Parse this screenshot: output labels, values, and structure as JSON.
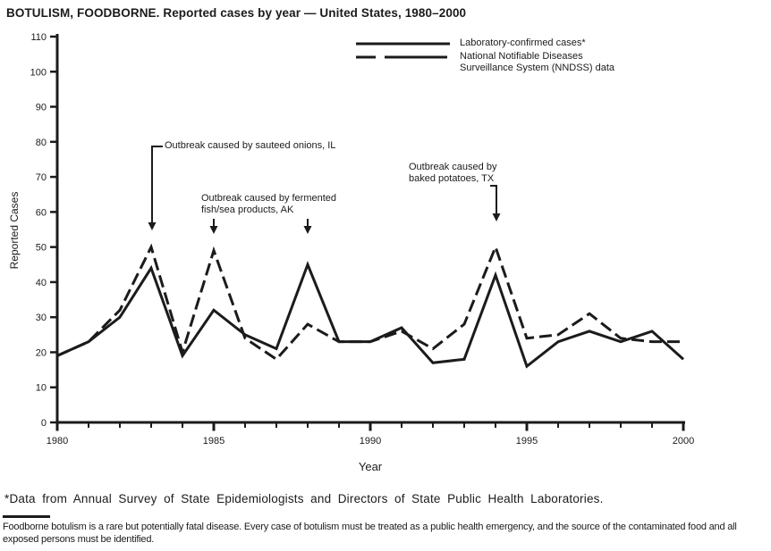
{
  "title": "BOTULISM, FOODBORNE. Reported cases by year — United States, 1980–2000",
  "legend": {
    "items": [
      {
        "style": "solid",
        "lines": [
          "Laboratory-confirmed cases*"
        ]
      },
      {
        "style": "dashed",
        "lines": [
          "National Notifiable Diseases",
          "Surveillance System (NNDSS) data"
        ]
      }
    ]
  },
  "annotations": [
    {
      "lines": [
        "Outbreak caused by sauteed onions, IL"
      ],
      "target_years": [
        1983
      ]
    },
    {
      "lines": [
        "Outbreak caused by fermented",
        "fish/sea products, AK"
      ],
      "target_years": [
        1985,
        1988
      ]
    },
    {
      "lines": [
        "Outbreak caused by",
        "baked potatoes, TX"
      ],
      "target_years": [
        1994
      ]
    }
  ],
  "chart_data": {
    "type": "line",
    "title": "BOTULISM, FOODBORNE. Reported cases by year — United States, 1980–2000",
    "xlabel": "Year",
    "ylabel": "Reported Cases",
    "xlim": [
      1980,
      2000
    ],
    "ylim": [
      0,
      110
    ],
    "grid": false,
    "legend_position": "top-center",
    "x": [
      1980,
      1981,
      1982,
      1983,
      1984,
      1985,
      1986,
      1987,
      1988,
      1989,
      1990,
      1991,
      1992,
      1993,
      1994,
      1995,
      1996,
      1997,
      1998,
      1999,
      2000
    ],
    "x_tick_labels": [
      1980,
      1985,
      1990,
      1995,
      2000
    ],
    "y_tick_labels": [
      0,
      10,
      20,
      30,
      40,
      50,
      60,
      70,
      80,
      90,
      100,
      110
    ],
    "series": [
      {
        "name": "Laboratory-confirmed cases*",
        "style": "solid",
        "values": [
          19,
          23,
          30,
          44,
          19,
          32,
          25,
          21,
          45,
          23,
          23,
          27,
          17,
          18,
          42,
          16,
          23,
          26,
          23,
          26,
          18
        ]
      },
      {
        "name": "National Notifiable Diseases Surveillance System (NNDSS) data",
        "style": "dashed",
        "values": [
          19,
          23,
          32,
          50,
          20,
          49,
          24,
          18,
          28,
          23,
          23,
          26,
          21,
          28,
          50,
          24,
          25,
          31,
          24,
          23,
          23
        ]
      }
    ]
  },
  "footnotes": {
    "asterisk": "*Data from Annual Survey of State Epidemiologists and Directors of State Public Health Laboratories.",
    "note": "Foodborne botulism is a rare but potentially fatal disease. Every case of botulism must be treated as a public health emergency, and the source of the contaminated food and all exposed persons must be identified."
  },
  "colors": {
    "ink": "#1b1b1b",
    "background": "#ffffff"
  }
}
